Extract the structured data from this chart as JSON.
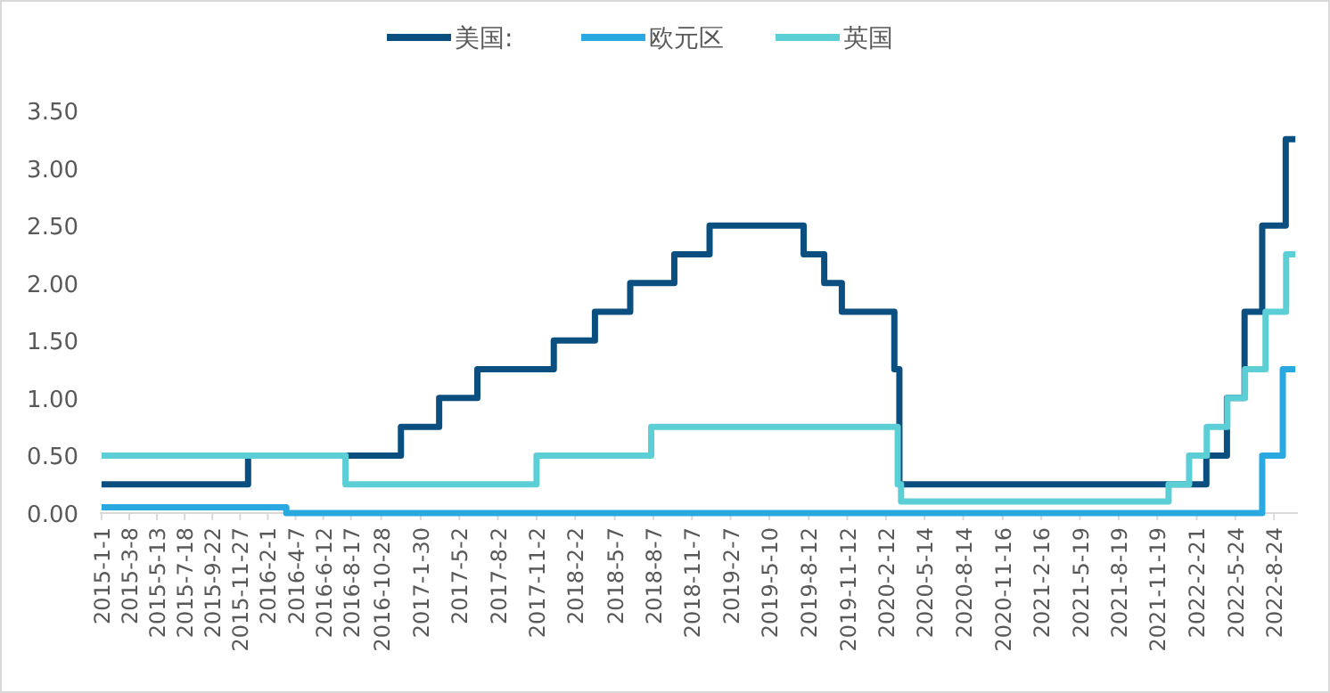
{
  "chart_data": {
    "type": "step",
    "legend": "top",
    "line_style": "solid",
    "marker": "none",
    "grid": false,
    "xlim": [
      "2014-12-28",
      "2022-10-20"
    ],
    "ylim": [
      0,
      3.5
    ],
    "yticks": [
      {
        "value": 0,
        "label": "0.00"
      },
      {
        "value": 0.5,
        "label": "0.50"
      },
      {
        "value": 1,
        "label": "1.00"
      },
      {
        "value": 1.5,
        "label": "1.50"
      },
      {
        "value": 2,
        "label": "2.00"
      },
      {
        "value": 2.5,
        "label": "2.50"
      },
      {
        "value": 3,
        "label": "3.00"
      },
      {
        "value": 3.5,
        "label": "3.50"
      }
    ],
    "xticks": [
      {
        "value": "2015-01-01",
        "label": "2015-1-1"
      },
      {
        "value": "2015-03-08",
        "label": "2015-3-8"
      },
      {
        "value": "2015-05-13",
        "label": "2015-5-13"
      },
      {
        "value": "2015-07-18",
        "label": "2015-7-18"
      },
      {
        "value": "2015-09-22",
        "label": "2015-9-22"
      },
      {
        "value": "2015-11-27",
        "label": "2015-11-27"
      },
      {
        "value": "2016-02-01",
        "label": "2016-2-1"
      },
      {
        "value": "2016-04-07",
        "label": "2016-4-7"
      },
      {
        "value": "2016-06-12",
        "label": "2016-6-12"
      },
      {
        "value": "2016-08-17",
        "label": "2016-8-17"
      },
      {
        "value": "2016-10-28",
        "label": "2016-10-28"
      },
      {
        "value": "2017-01-30",
        "label": "2017-1-30"
      },
      {
        "value": "2017-05-02",
        "label": "2017-5-2"
      },
      {
        "value": "2017-08-02",
        "label": "2017-8-2"
      },
      {
        "value": "2017-11-02",
        "label": "2017-11-2"
      },
      {
        "value": "2018-02-02",
        "label": "2018-2-2"
      },
      {
        "value": "2018-05-07",
        "label": "2018-5-7"
      },
      {
        "value": "2018-08-07",
        "label": "2018-8-7"
      },
      {
        "value": "2018-11-07",
        "label": "2018-11-7"
      },
      {
        "value": "2019-02-07",
        "label": "2019-2-7"
      },
      {
        "value": "2019-05-10",
        "label": "2019-5-10"
      },
      {
        "value": "2019-08-12",
        "label": "2019-8-12"
      },
      {
        "value": "2019-11-12",
        "label": "2019-11-12"
      },
      {
        "value": "2020-02-12",
        "label": "2020-2-12"
      },
      {
        "value": "2020-05-14",
        "label": "2020-5-14"
      },
      {
        "value": "2020-08-14",
        "label": "2020-8-14"
      },
      {
        "value": "2020-11-16",
        "label": "2020-11-16"
      },
      {
        "value": "2021-02-16",
        "label": "2021-2-16"
      },
      {
        "value": "2021-05-19",
        "label": "2021-5-19"
      },
      {
        "value": "2021-08-19",
        "label": "2021-8-19"
      },
      {
        "value": "2021-11-19",
        "label": "2021-11-19"
      },
      {
        "value": "2022-02-21",
        "label": "2022-2-21"
      },
      {
        "value": "2022-05-24",
        "label": "2022-5-24"
      },
      {
        "value": "2022-08-24",
        "label": "2022-8-24"
      }
    ],
    "series": [
      {
        "name": "美国:",
        "color": "#0b4f80",
        "x": [
          "2015-01-01",
          "2015-12-16",
          "2016-12-14",
          "2017-03-15",
          "2017-06-14",
          "2017-12-13",
          "2018-03-21",
          "2018-06-13",
          "2018-09-26",
          "2018-12-19",
          "2019-07-31",
          "2019-09-18",
          "2019-10-30",
          "2020-03-03",
          "2020-03-15",
          "2022-03-16",
          "2022-05-04",
          "2022-06-15",
          "2022-07-27",
          "2022-09-21",
          "2022-10-14"
        ],
        "values": [
          0.25,
          0.5,
          0.75,
          1.0,
          1.25,
          1.5,
          1.75,
          2.0,
          2.25,
          2.5,
          2.25,
          2.0,
          1.75,
          1.25,
          0.25,
          0.5,
          1.0,
          1.75,
          2.5,
          3.25,
          3.25
        ]
      },
      {
        "name": "欧元区",
        "color": "#29a9e0",
        "x": [
          "2015-01-01",
          "2016-03-16",
          "2022-07-27",
          "2022-09-14",
          "2022-10-14"
        ],
        "values": [
          0.05,
          0.0,
          0.5,
          1.25,
          1.25
        ]
      },
      {
        "name": "英国",
        "color": "#5ccfd6",
        "x": [
          "2015-01-01",
          "2016-08-04",
          "2017-11-02",
          "2018-08-02",
          "2020-03-11",
          "2020-03-19",
          "2021-12-16",
          "2022-02-03",
          "2022-03-17",
          "2022-05-05",
          "2022-06-16",
          "2022-08-04",
          "2022-09-22",
          "2022-10-14"
        ],
        "values": [
          0.5,
          0.25,
          0.5,
          0.75,
          0.25,
          0.1,
          0.25,
          0.5,
          0.75,
          1.0,
          1.25,
          1.75,
          2.25,
          2.25
        ]
      }
    ]
  }
}
